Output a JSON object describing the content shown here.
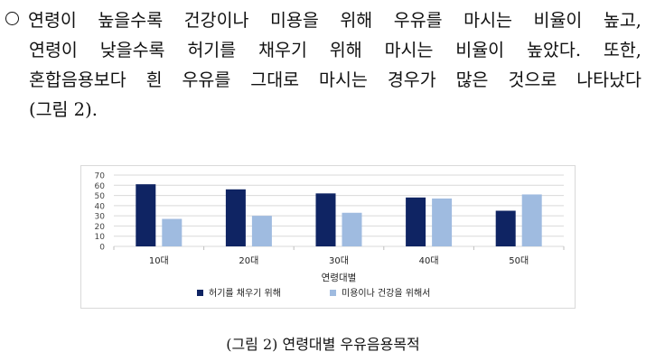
{
  "paragraph": {
    "lines": [
      "연령이 높을수록 건강이나 미용을 위해 우유를 마시는 비율이 높고,",
      "연령이 낮을수록 허기를 채우기 위해 마시는 비율이 높았다. 또한,",
      "혼합음용보다 흰 우유를 그대로 마시는 경우가 많은 것으로 나타났다",
      "(그림 2)."
    ]
  },
  "chart_data": {
    "type": "bar",
    "categories": [
      "10대",
      "20대",
      "30대",
      "40대",
      "50대"
    ],
    "series": [
      {
        "name": "허기를 채우기 위해",
        "values": [
          61,
          56,
          52,
          48,
          35
        ],
        "color": "#0f2463"
      },
      {
        "name": "미용이나 건강을 위해서",
        "values": [
          27,
          30,
          33,
          47,
          51
        ],
        "color": "#9fbbe0"
      }
    ],
    "yticks": [
      "0",
      "10",
      "20",
      "30",
      "40",
      "50",
      "60",
      "70"
    ],
    "ylim": [
      0,
      70
    ],
    "xlabel": "연령대별",
    "legend_position": "bottom",
    "grid": true
  },
  "caption": "(그림 2) 연령대별 우유음용목적"
}
